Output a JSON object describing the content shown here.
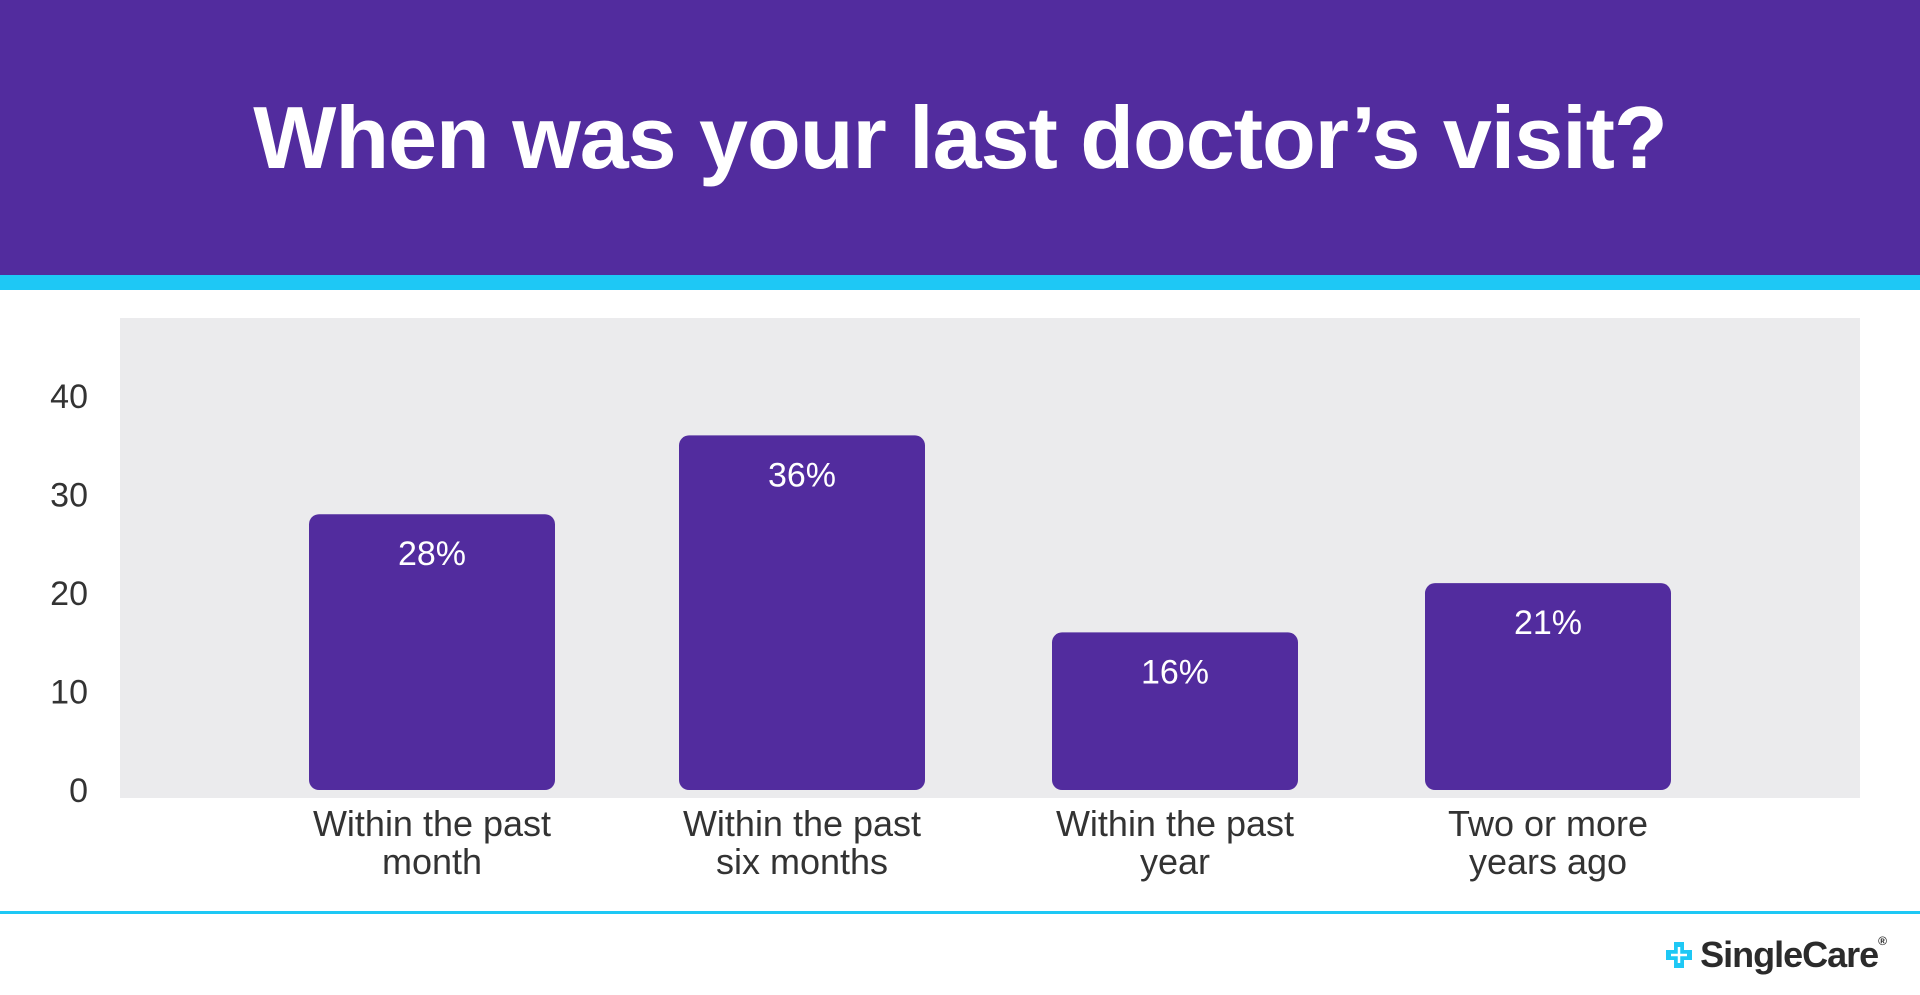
{
  "header": {
    "title": "When was your last doctor’s visit?"
  },
  "chart_data": {
    "type": "bar",
    "categories": [
      [
        "Within the past",
        "month"
      ],
      [
        "Within the past",
        "six months"
      ],
      [
        "Within the past",
        "year"
      ],
      [
        "Two or more",
        "years ago"
      ]
    ],
    "values": [
      28,
      36,
      16,
      21
    ],
    "data_labels": [
      "28%",
      "36%",
      "16%",
      "21%"
    ],
    "yticks": [
      "0",
      "10",
      "20",
      "30",
      "40"
    ],
    "ylim": [
      0,
      48
    ],
    "grid": false,
    "bar_color": "#522c9e",
    "plot_background": "#ebebed"
  },
  "brand": {
    "name": "SingleCare",
    "mark": "®",
    "header_color": "#522c9e",
    "accent_color": "#1ec8f5"
  }
}
